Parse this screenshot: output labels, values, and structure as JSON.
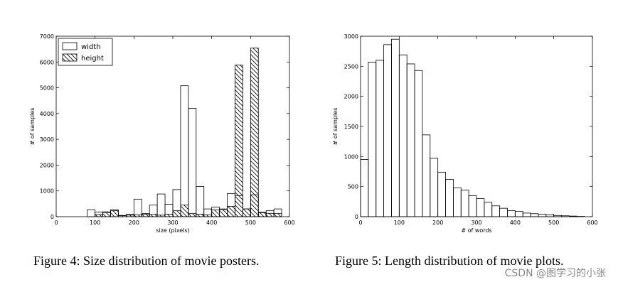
{
  "figures": [
    {
      "caption": "Figure 4: Size distribution of movie posters."
    },
    {
      "caption": "Figure 5: Length distribution of movie plots."
    }
  ],
  "watermark": "CSDN @图学习的小张",
  "chart_data": [
    {
      "type": "bar",
      "xlabel": "size (pixels)",
      "ylabel": "# of samples",
      "xlim": [
        0,
        600
      ],
      "ylim": [
        0,
        7000
      ],
      "xticks": [
        0,
        100,
        200,
        300,
        400,
        500,
        600
      ],
      "yticks": [
        0,
        1000,
        2000,
        3000,
        4000,
        5000,
        6000,
        7000
      ],
      "legend_position": "top-left",
      "bin_width": 20,
      "series": [
        {
          "name": "width",
          "hatch": "none",
          "bins": [
            [
              80,
              270
            ],
            [
              100,
              180
            ],
            [
              120,
              190
            ],
            [
              140,
              270
            ],
            [
              160,
              50
            ],
            [
              180,
              60
            ],
            [
              200,
              680
            ],
            [
              220,
              120
            ],
            [
              240,
              450
            ],
            [
              260,
              880
            ],
            [
              280,
              480
            ],
            [
              300,
              1050
            ],
            [
              320,
              5080
            ],
            [
              340,
              4200
            ],
            [
              360,
              1170
            ],
            [
              380,
              300
            ],
            [
              400,
              370
            ],
            [
              420,
              300
            ],
            [
              440,
              900
            ],
            [
              460,
              820
            ],
            [
              480,
              300
            ],
            [
              500,
              850
            ],
            [
              520,
              170
            ],
            [
              540,
              230
            ],
            [
              560,
              300
            ]
          ]
        },
        {
          "name": "height",
          "hatch": "diagonal",
          "bins": [
            [
              100,
              80
            ],
            [
              120,
              150
            ],
            [
              140,
              230
            ],
            [
              160,
              40
            ],
            [
              180,
              90
            ],
            [
              200,
              70
            ],
            [
              220,
              100
            ],
            [
              240,
              90
            ],
            [
              260,
              60
            ],
            [
              280,
              100
            ],
            [
              300,
              230
            ],
            [
              320,
              450
            ],
            [
              340,
              120
            ],
            [
              360,
              100
            ],
            [
              380,
              70
            ],
            [
              400,
              260
            ],
            [
              420,
              270
            ],
            [
              440,
              400
            ],
            [
              460,
              5880
            ],
            [
              480,
              300
            ],
            [
              500,
              6540
            ],
            [
              520,
              150
            ],
            [
              540,
              130
            ],
            [
              560,
              120
            ]
          ]
        }
      ]
    },
    {
      "type": "bar",
      "xlabel": "# of words",
      "ylabel": "# of samples",
      "xlim": [
        0,
        600
      ],
      "ylim": [
        0,
        3000
      ],
      "xticks": [
        0,
        100,
        200,
        300,
        400,
        500,
        600
      ],
      "yticks": [
        0,
        500,
        1000,
        1500,
        2000,
        2500,
        3000
      ],
      "bin_width": 20,
      "series": [
        {
          "name": "",
          "bins": [
            [
              0,
              950
            ],
            [
              20,
              2570
            ],
            [
              40,
              2600
            ],
            [
              60,
              2860
            ],
            [
              80,
              2950
            ],
            [
              100,
              2690
            ],
            [
              120,
              2540
            ],
            [
              140,
              2430
            ],
            [
              160,
              1360
            ],
            [
              180,
              970
            ],
            [
              200,
              740
            ],
            [
              220,
              620
            ],
            [
              240,
              480
            ],
            [
              260,
              440
            ],
            [
              280,
              350
            ],
            [
              300,
              300
            ],
            [
              320,
              240
            ],
            [
              340,
              180
            ],
            [
              360,
              140
            ],
            [
              380,
              100
            ],
            [
              400,
              90
            ],
            [
              420,
              60
            ],
            [
              440,
              50
            ],
            [
              460,
              40
            ],
            [
              480,
              30
            ],
            [
              500,
              20
            ],
            [
              520,
              15
            ],
            [
              540,
              10
            ],
            [
              560,
              5
            ]
          ]
        }
      ]
    }
  ]
}
